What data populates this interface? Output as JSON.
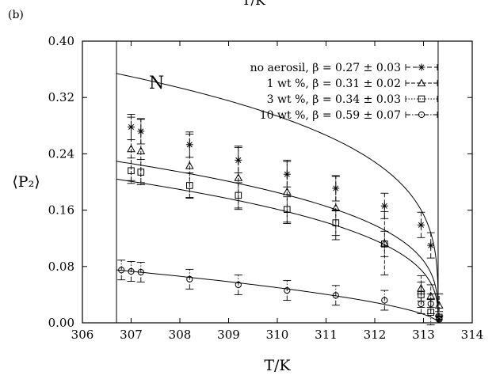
{
  "header": {
    "panel_label": "(b)",
    "top_cut_label": "T/K"
  },
  "chart_data": {
    "type": "scatter",
    "xlabel": "T/K",
    "ylabel": "⟨P₂⟩",
    "xlim": [
      306,
      314
    ],
    "ylim": [
      0.0,
      0.4
    ],
    "x_ticks": [
      "306",
      "307",
      "308",
      "309",
      "310",
      "311",
      "312",
      "313",
      "314"
    ],
    "y_ticks": [
      "0.00",
      "0.08",
      "0.16",
      "0.24",
      "0.32",
      "0.40"
    ],
    "grid": false,
    "legend_position": "top-right",
    "annotations": [
      {
        "text": "N",
        "x": 307.5,
        "y": 0.338
      }
    ],
    "vertical_lines": [
      306.7,
      313.3
    ],
    "series": [
      {
        "name": "no aerosil, β = 0.27 ± 0.03",
        "marker": "asterisk",
        "x": [
          307.0,
          307.2,
          308.2,
          309.2,
          310.2,
          311.2,
          312.2,
          312.95,
          313.15,
          313.32
        ],
        "y": [
          0.278,
          0.272,
          0.253,
          0.231,
          0.211,
          0.191,
          0.166,
          0.139,
          0.11,
          0.005
        ],
        "yerr": [
          0.018,
          0.018,
          0.018,
          0.018,
          0.018,
          0.018,
          0.018,
          0.018,
          0.018,
          0.005
        ],
        "fit": {
          "Tc": 313.3,
          "A": 0.2127,
          "beta": 0.27
        }
      },
      {
        "name": "1 wt %, β = 0.31 ± 0.02",
        "marker": "triangle",
        "x": [
          307.0,
          307.2,
          308.2,
          309.2,
          310.2,
          311.2,
          312.2,
          312.95,
          313.15,
          313.32
        ],
        "y": [
          0.247,
          0.244,
          0.223,
          0.206,
          0.186,
          0.163,
          0.113,
          0.049,
          0.038,
          0.025
        ],
        "yerr": [
          0.045,
          0.045,
          0.045,
          0.045,
          0.045,
          0.045,
          0.045,
          0.018,
          0.016,
          0.016
        ],
        "fit": {
          "Tc": 313.3,
          "A": 0.1278,
          "beta": 0.31
        }
      },
      {
        "name": "3 wt %, β = 0.34 ± 0.03",
        "marker": "square",
        "x": [
          307.0,
          307.2,
          308.2,
          309.2,
          310.2,
          311.2,
          312.2,
          312.95,
          313.15,
          313.32
        ],
        "y": [
          0.216,
          0.214,
          0.195,
          0.181,
          0.161,
          0.142,
          0.112,
          0.04,
          0.015,
          0.008
        ],
        "yerr": [
          0.018,
          0.018,
          0.018,
          0.018,
          0.018,
          0.018,
          0.018,
          0.018,
          0.018,
          0.008
        ],
        "fit": {
          "Tc": 313.3,
          "A": 0.1074,
          "beta": 0.34
        }
      },
      {
        "name": "10 wt %, β = 0.59 ± 0.07",
        "marker": "circle",
        "x": [
          306.8,
          307.0,
          307.2,
          308.2,
          309.2,
          310.2,
          311.2,
          312.2,
          312.95,
          313.15,
          313.32
        ],
        "y": [
          0.075,
          0.073,
          0.072,
          0.062,
          0.054,
          0.046,
          0.039,
          0.032,
          0.027,
          0.027,
          0.005
        ],
        "yerr": [
          0.014,
          0.014,
          0.014,
          0.014,
          0.014,
          0.014,
          0.014,
          0.014,
          0.014,
          0.014,
          0.005
        ],
        "fit": {
          "Tc": 313.3,
          "A": 0.0247,
          "beta": 0.59
        }
      }
    ]
  }
}
